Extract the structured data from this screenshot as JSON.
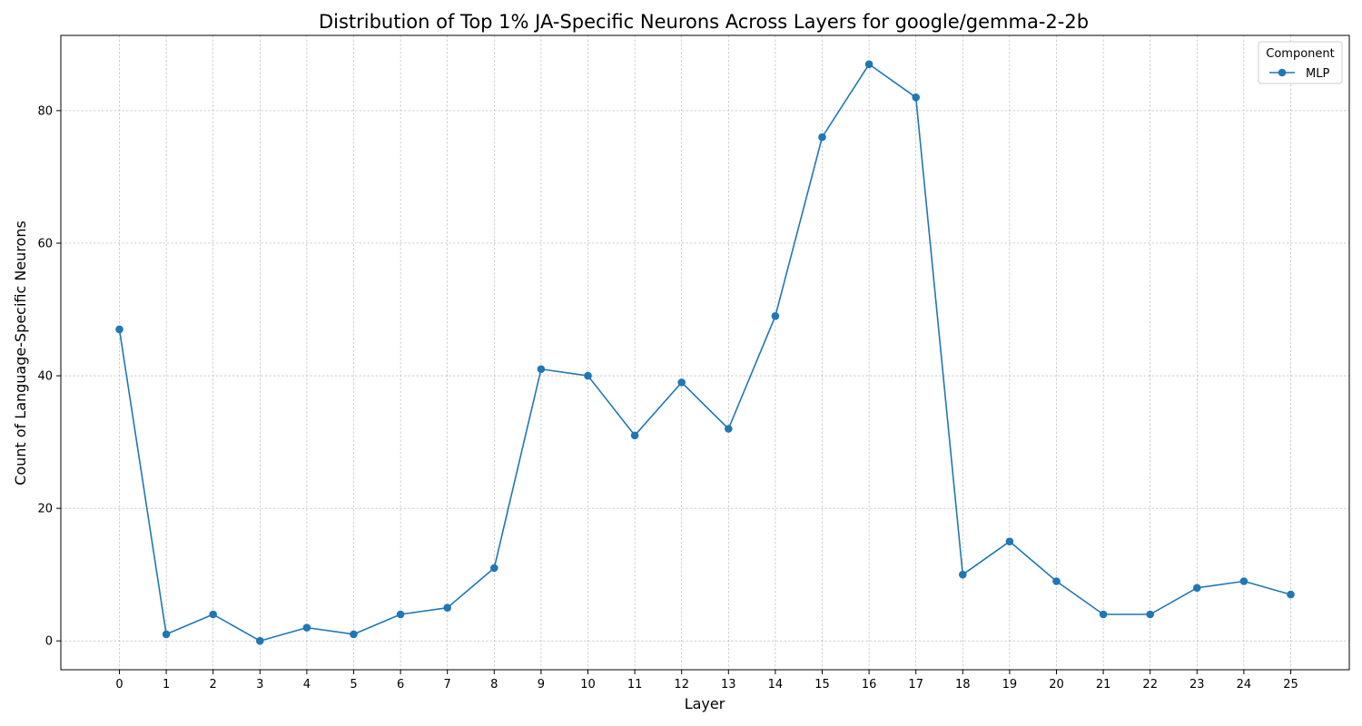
{
  "chart_data": {
    "type": "line",
    "title": "Distribution of Top 1% JA-Specific Neurons Across Layers for google/gemma-2-2b",
    "xlabel": "Layer",
    "ylabel": "Count of Language-Specific Neurons",
    "x": [
      0,
      1,
      2,
      3,
      4,
      5,
      6,
      7,
      8,
      9,
      10,
      11,
      12,
      13,
      14,
      15,
      16,
      17,
      18,
      19,
      20,
      21,
      22,
      23,
      24,
      25
    ],
    "series": [
      {
        "name": "MLP",
        "color": "#1f77b4",
        "marker": "circle",
        "values": [
          47,
          1,
          4,
          0,
          2,
          1,
          4,
          5,
          11,
          41,
          40,
          31,
          39,
          32,
          49,
          76,
          87,
          82,
          10,
          15,
          9,
          4,
          4,
          8,
          9,
          7
        ]
      }
    ],
    "xlim": [
      -1.25,
      26.25
    ],
    "ylim": [
      -4.35,
      91.35
    ],
    "yticks": [
      0,
      20,
      40,
      60,
      80
    ],
    "grid": true,
    "legend": {
      "title": "Component",
      "position": "top-right"
    }
  }
}
